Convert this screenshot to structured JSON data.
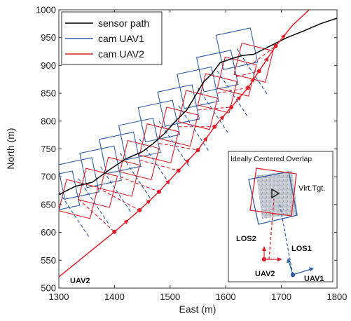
{
  "chart_data": {
    "type": "line",
    "xlabel": "East (m)",
    "ylabel": "North (m)",
    "xlim": [
      1300,
      1800
    ],
    "ylim": [
      500,
      1000
    ],
    "xticks": [
      "1300",
      "1400",
      "1500",
      "1600",
      "1700",
      "1800"
    ],
    "yticks": [
      "500",
      "550",
      "600",
      "650",
      "700",
      "750",
      "800",
      "850",
      "900",
      "950",
      "1000"
    ],
    "grid": false,
    "legend_position": "top-left",
    "series": [
      {
        "name": "sensor path",
        "color": "#000000",
        "x": [
          1300,
          1330,
          1360,
          1390,
          1420,
          1450,
          1470,
          1490,
          1510,
          1530,
          1545,
          1560,
          1575,
          1590,
          1610,
          1630,
          1650,
          1680,
          1710,
          1740,
          1770,
          1800
        ],
        "y": [
          668,
          683,
          690,
          712,
          732,
          745,
          760,
          778,
          800,
          820,
          845,
          870,
          885,
          905,
          912,
          918,
          920,
          935,
          950,
          962,
          975,
          985
        ]
      },
      {
        "name": "cam UAV1",
        "color": "#2f5fa8",
        "x": [
          1300,
          1335,
          1375,
          1410,
          1445,
          1480,
          1515,
          1550,
          1585,
          1620
        ],
        "y": [
          673,
          697,
          718,
          743,
          768,
          800,
          828,
          860,
          890,
          930
        ]
      },
      {
        "name": "cam UAV2",
        "color": "#e0202a",
        "x": [
          1335,
          1370,
          1410,
          1445,
          1480,
          1515,
          1550,
          1585,
          1620,
          1650
        ],
        "y": [
          660,
          680,
          700,
          730,
          760,
          790,
          820,
          850,
          880,
          905
        ]
      },
      {
        "name": "UAV2",
        "color": "#e0202a",
        "x": [
          1300,
          1400,
          1445,
          1480,
          1515,
          1550,
          1580,
          1610,
          1640,
          1660,
          1690,
          1720,
          1750
        ],
        "y": [
          520,
          601,
          640,
          673,
          711,
          748,
          790,
          825,
          860,
          890,
          935,
          972,
          1000
        ]
      }
    ],
    "annotations": {
      "uav2_label": "UAV2",
      "inset_title": "Ideally Centered Overlap",
      "target_label": "Virt.Tgt.",
      "los2_label": "LOS2",
      "los1_label": "LOS1",
      "inset_uav2_label": "UAV2",
      "inset_uav1_label": "UAV1"
    }
  }
}
